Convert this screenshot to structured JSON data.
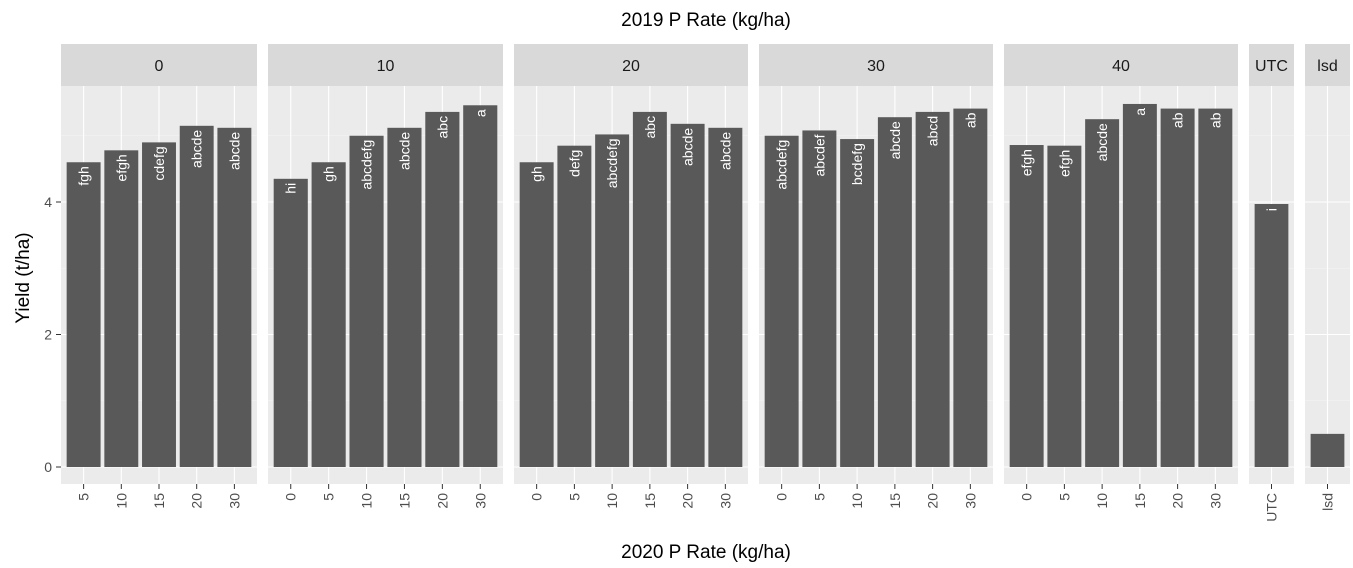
{
  "chart_data": {
    "type": "bar",
    "title": "2019 P Rate (kg/ha)",
    "xlabel": "2020 P Rate (kg/ha)",
    "ylabel": "Yield (t/ha)",
    "ylim": [
      0,
      5.7
    ],
    "yticks": [
      0,
      2,
      4
    ],
    "grid": true,
    "facets": [
      {
        "strip": "0",
        "categories": [
          "5",
          "10",
          "15",
          "20",
          "30"
        ],
        "values": [
          4.6,
          4.78,
          4.9,
          5.15,
          5.12
        ],
        "labels": [
          "fgh",
          "efgh",
          "cdefg",
          "abcde",
          "abcde"
        ]
      },
      {
        "strip": "10",
        "categories": [
          "0",
          "5",
          "10",
          "15",
          "20",
          "30"
        ],
        "values": [
          4.35,
          4.6,
          5.0,
          5.12,
          5.36,
          5.46
        ],
        "labels": [
          "hi",
          "gh",
          "abcdefg",
          "abcde",
          "abc",
          "a"
        ]
      },
      {
        "strip": "20",
        "categories": [
          "0",
          "5",
          "10",
          "15",
          "20",
          "30"
        ],
        "values": [
          4.6,
          4.85,
          5.02,
          5.36,
          5.18,
          5.12
        ],
        "labels": [
          "gh",
          "defg",
          "abcdefg",
          "abc",
          "abcde",
          "abcde"
        ]
      },
      {
        "strip": "30",
        "categories": [
          "0",
          "5",
          "10",
          "15",
          "20",
          "30"
        ],
        "values": [
          5.0,
          5.08,
          4.95,
          5.28,
          5.36,
          5.41
        ],
        "labels": [
          "abcdefg",
          "abcdef",
          "bcdefg",
          "abcde",
          "abcd",
          "ab"
        ]
      },
      {
        "strip": "40",
        "categories": [
          "0",
          "5",
          "10",
          "15",
          "20",
          "30"
        ],
        "values": [
          4.86,
          4.85,
          5.25,
          5.48,
          5.41,
          5.41
        ],
        "labels": [
          "efgh",
          "efgh",
          "abcde",
          "a",
          "ab",
          "ab"
        ]
      },
      {
        "strip": "UTC",
        "categories": [
          "UTC"
        ],
        "values": [
          3.97
        ],
        "labels": [
          "i"
        ]
      },
      {
        "strip": "lsd",
        "categories": [
          "lsd"
        ],
        "values": [
          0.5
        ],
        "labels": [
          ""
        ]
      }
    ]
  }
}
